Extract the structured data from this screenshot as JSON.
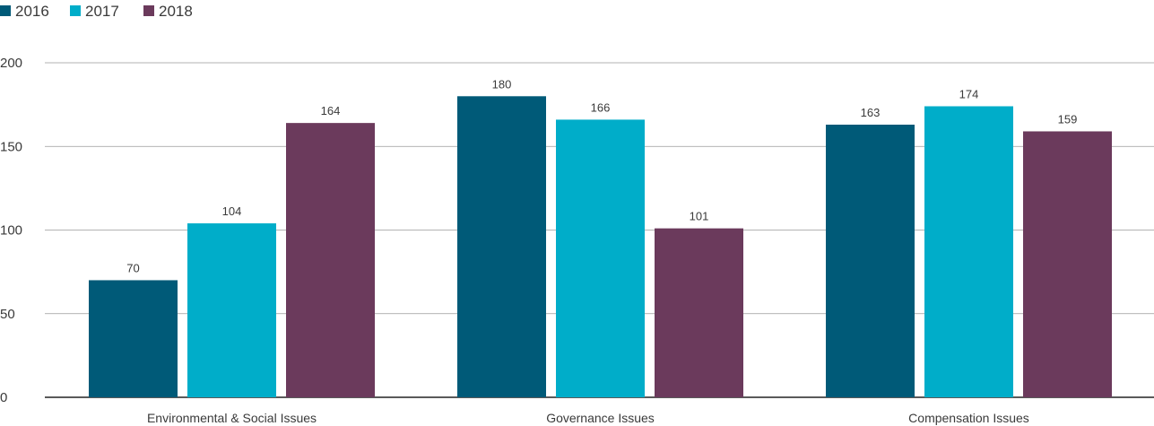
{
  "chart_data": {
    "type": "bar",
    "categories": [
      "Environmental & Social Issues",
      "Governance Issues",
      "Compensation Issues"
    ],
    "series": [
      {
        "name": "2016",
        "values": [
          70,
          180,
          163
        ],
        "color": "#005a78"
      },
      {
        "name": "2017",
        "values": [
          104,
          166,
          174
        ],
        "color": "#00adc9"
      },
      {
        "name": "2018",
        "values": [
          164,
          101,
          159
        ],
        "color": "#6b3a5c"
      }
    ],
    "yticks": [
      "0",
      "50",
      "100",
      "150",
      "200"
    ],
    "ylim": [
      0,
      200
    ],
    "grid": true,
    "legend": "top-left",
    "title": "",
    "xlabel": "",
    "ylabel": ""
  }
}
